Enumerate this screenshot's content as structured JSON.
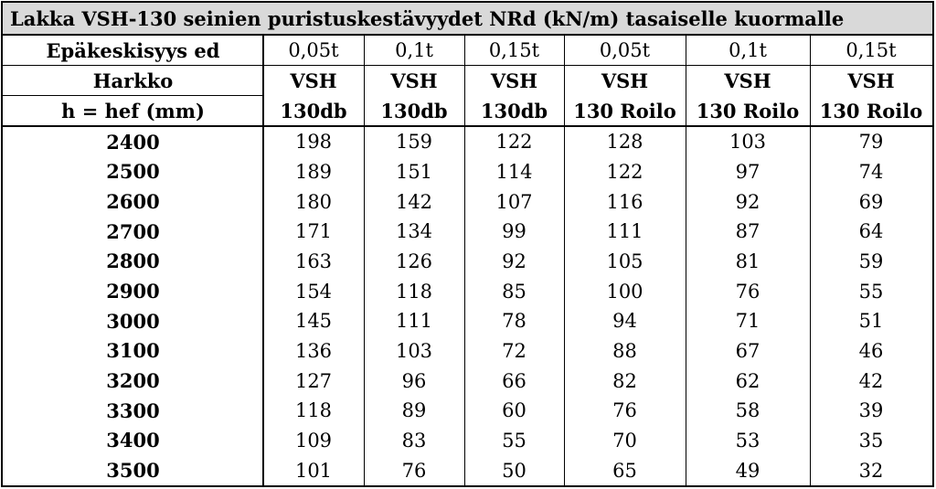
{
  "title": "Lakka VSH-130 seinien puristuskestävyydet NRd (kN/m) tasaiselle kuormalle",
  "table": {
    "header": {
      "eccentricity_label": "Epäkeskisyys ed",
      "eccentricities": [
        "0,05t",
        "0,1t",
        "0,15t",
        "0,05t",
        "0,1t",
        "0,15t"
      ],
      "block_label": "Harkko",
      "blocks": [
        [
          "VSH",
          "130db"
        ],
        [
          "VSH",
          "130db"
        ],
        [
          "VSH",
          "130db"
        ],
        [
          "VSH",
          "130 Roilo"
        ],
        [
          "VSH",
          "130 Roilo"
        ],
        [
          "VSH",
          "130 Roilo"
        ]
      ],
      "height_label": "h = hef (mm)"
    },
    "rows": [
      [
        2400,
        198,
        159,
        122,
        128,
        103,
        79
      ],
      [
        2500,
        189,
        151,
        114,
        122,
        97,
        74
      ],
      [
        2600,
        180,
        142,
        107,
        116,
        92,
        69
      ],
      [
        2700,
        171,
        134,
        99,
        111,
        87,
        64
      ],
      [
        2800,
        163,
        126,
        92,
        105,
        81,
        59
      ],
      [
        2900,
        154,
        118,
        85,
        100,
        76,
        55
      ],
      [
        3000,
        145,
        111,
        78,
        94,
        71,
        51
      ],
      [
        3100,
        136,
        103,
        72,
        88,
        67,
        46
      ],
      [
        3200,
        127,
        96,
        66,
        82,
        62,
        42
      ],
      [
        3300,
        118,
        89,
        60,
        76,
        58,
        39
      ],
      [
        3400,
        109,
        83,
        55,
        70,
        53,
        35
      ],
      [
        3500,
        101,
        76,
        50,
        65,
        49,
        32
      ]
    ]
  }
}
